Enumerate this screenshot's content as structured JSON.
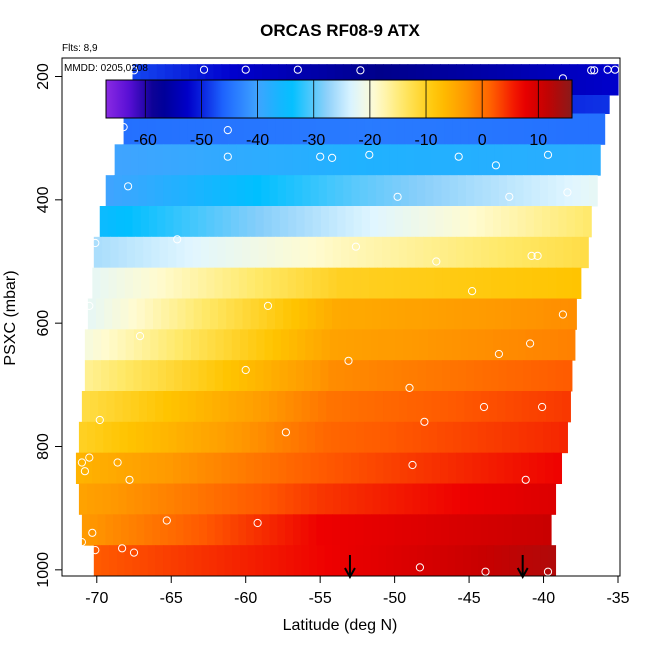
{
  "chart_data": {
    "type": "heatmap",
    "title": "ORCAS RF08-9 ATX",
    "subtitle": "Flts: 8,9",
    "annotation": "MMDD: 0205,0208",
    "xlabel": "Latitude (deg N)",
    "ylabel": "PSXC (mbar)",
    "xlim": [
      -72,
      -35
    ],
    "ylim": [
      1010,
      170
    ],
    "x_ticks": [
      -70,
      -65,
      -60,
      -55,
      -50,
      -45,
      -40,
      -35
    ],
    "y_ticks": [
      200,
      400,
      600,
      800,
      1000
    ],
    "colorbar": {
      "range": [
        -67,
        16
      ],
      "ticks": [
        -60,
        -50,
        -40,
        -30,
        -20,
        -10,
        0,
        10
      ],
      "stops": [
        {
          "v": -67,
          "c": "#8a2be2"
        },
        {
          "v": -63,
          "c": "#5a0fd6"
        },
        {
          "v": -58,
          "c": "#00008b"
        },
        {
          "v": -52,
          "c": "#0000cd"
        },
        {
          "v": -46,
          "c": "#1e66ff"
        },
        {
          "v": -40,
          "c": "#3fa4ff"
        },
        {
          "v": -34,
          "c": "#00bfff"
        },
        {
          "v": -28,
          "c": "#87cefa"
        },
        {
          "v": -23,
          "c": "#e0f6ff"
        },
        {
          "v": -19,
          "c": "#fffbd0"
        },
        {
          "v": -14,
          "c": "#ffe866"
        },
        {
          "v": -8,
          "c": "#ffc400"
        },
        {
          "v": -3,
          "c": "#ff9900"
        },
        {
          "v": 2,
          "c": "#ff5a00"
        },
        {
          "v": 7,
          "c": "#ee0000"
        },
        {
          "v": 11,
          "c": "#c80000"
        },
        {
          "v": 16,
          "c": "#8b1a1a"
        }
      ]
    },
    "layers": [
      {
        "p_top": 180,
        "p_bot": 230,
        "lat_start": -67.6,
        "lat_end": -35.0,
        "t_south": -48,
        "t_mid": -58,
        "t_north": -52
      },
      {
        "p_top": 230,
        "p_bot": 260,
        "lat_start": -67.8,
        "lat_end": -35.6,
        "t_south": -52,
        "t_mid": -52,
        "t_north": -49
      },
      {
        "p_top": 260,
        "p_bot": 310,
        "lat_start": -68.2,
        "lat_end": -35.9,
        "t_south": -45,
        "t_mid": -44,
        "t_north": -45
      },
      {
        "p_top": 310,
        "p_bot": 360,
        "lat_start": -68.8,
        "lat_end": -36.2,
        "t_south": -40,
        "t_mid": -37,
        "t_north": -38
      },
      {
        "p_top": 360,
        "p_bot": 410,
        "lat_start": -69.4,
        "lat_end": -36.4,
        "t_south": -40,
        "t_mid": -30,
        "t_north": -22
      },
      {
        "p_top": 410,
        "p_bot": 460,
        "lat_start": -69.8,
        "lat_end": -36.8,
        "t_south": -35,
        "t_mid": -24,
        "t_north": -14
      },
      {
        "p_top": 460,
        "p_bot": 510,
        "lat_start": -70.2,
        "lat_end": -37.0,
        "t_south": -26,
        "t_mid": -18,
        "t_north": -12
      },
      {
        "p_top": 510,
        "p_bot": 560,
        "lat_start": -70.3,
        "lat_end": -37.5,
        "t_south": -22,
        "t_mid": -10,
        "t_north": -8
      },
      {
        "p_top": 560,
        "p_bot": 610,
        "lat_start": -70.6,
        "lat_end": -37.8,
        "t_south": -22,
        "t_mid": -5,
        "t_north": -2
      },
      {
        "p_top": 610,
        "p_bot": 660,
        "lat_start": -70.8,
        "lat_end": -37.9,
        "t_south": -20,
        "t_mid": -4,
        "t_north": -1
      },
      {
        "p_top": 660,
        "p_bot": 710,
        "lat_start": -70.8,
        "lat_end": -38.1,
        "t_south": -16,
        "t_mid": -2,
        "t_north": 2
      },
      {
        "p_top": 710,
        "p_bot": 760,
        "lat_start": -71.0,
        "lat_end": -38.2,
        "t_south": -12,
        "t_mid": 0,
        "t_north": 4
      },
      {
        "p_top": 760,
        "p_bot": 810,
        "lat_start": -71.2,
        "lat_end": -38.4,
        "t_south": -10,
        "t_mid": 1,
        "t_north": 5
      },
      {
        "p_top": 810,
        "p_bot": 860,
        "lat_start": -71.4,
        "lat_end": -38.8,
        "t_south": -6,
        "t_mid": 2,
        "t_north": 7
      },
      {
        "p_top": 860,
        "p_bot": 910,
        "lat_start": -71.2,
        "lat_end": -39.2,
        "t_south": -4,
        "t_mid": 4,
        "t_north": 9
      },
      {
        "p_top": 910,
        "p_bot": 960,
        "lat_start": -71.0,
        "lat_end": -39.5,
        "t_south": -3,
        "t_mid": 7,
        "t_north": 11
      },
      {
        "p_top": 960,
        "p_bot": 1010,
        "lat_start": -70.2,
        "lat_end": -39.2,
        "t_south": 2,
        "t_mid": 7,
        "t_north": 13
      }
    ],
    "points": [
      {
        "x": -67.5,
        "y": 190
      },
      {
        "x": -62.8,
        "y": 189
      },
      {
        "x": -60.0,
        "y": 189
      },
      {
        "x": -56.5,
        "y": 189
      },
      {
        "x": -52.3,
        "y": 190
      },
      {
        "x": -38.7,
        "y": 203
      },
      {
        "x": -36.8,
        "y": 190
      },
      {
        "x": -36.6,
        "y": 190
      },
      {
        "x": -35.7,
        "y": 189
      },
      {
        "x": -35.2,
        "y": 189
      },
      {
        "x": -61.2,
        "y": 287
      },
      {
        "x": -68.2,
        "y": 282
      },
      {
        "x": -61.2,
        "y": 330
      },
      {
        "x": -55.0,
        "y": 330
      },
      {
        "x": -54.2,
        "y": 332
      },
      {
        "x": -51.7,
        "y": 327
      },
      {
        "x": -45.7,
        "y": 330
      },
      {
        "x": -43.2,
        "y": 344
      },
      {
        "x": -39.7,
        "y": 327
      },
      {
        "x": -67.9,
        "y": 378
      },
      {
        "x": -49.8,
        "y": 395
      },
      {
        "x": -42.3,
        "y": 395
      },
      {
        "x": -38.4,
        "y": 388
      },
      {
        "x": -64.6,
        "y": 464
      },
      {
        "x": -52.6,
        "y": 476
      },
      {
        "x": -70.1,
        "y": 470
      },
      {
        "x": -40.8,
        "y": 491
      },
      {
        "x": -40.4,
        "y": 491
      },
      {
        "x": -47.2,
        "y": 500
      },
      {
        "x": -70.5,
        "y": 572
      },
      {
        "x": -58.5,
        "y": 572
      },
      {
        "x": -44.8,
        "y": 548
      },
      {
        "x": -38.7,
        "y": 586
      },
      {
        "x": -67.1,
        "y": 621
      },
      {
        "x": -40.9,
        "y": 633
      },
      {
        "x": -43.0,
        "y": 650
      },
      {
        "x": -53.1,
        "y": 661
      },
      {
        "x": -60.0,
        "y": 676
      },
      {
        "x": -49.0,
        "y": 705
      },
      {
        "x": -44.0,
        "y": 736
      },
      {
        "x": -40.1,
        "y": 736
      },
      {
        "x": -69.8,
        "y": 757
      },
      {
        "x": -48.0,
        "y": 760
      },
      {
        "x": -57.3,
        "y": 777
      },
      {
        "x": -70.5,
        "y": 818
      },
      {
        "x": -71.0,
        "y": 826
      },
      {
        "x": -68.6,
        "y": 826
      },
      {
        "x": -48.8,
        "y": 830
      },
      {
        "x": -70.8,
        "y": 840
      },
      {
        "x": -67.8,
        "y": 854
      },
      {
        "x": -41.2,
        "y": 854
      },
      {
        "x": -65.3,
        "y": 920
      },
      {
        "x": -59.2,
        "y": 924
      },
      {
        "x": -70.3,
        "y": 940
      },
      {
        "x": -71.0,
        "y": 955
      },
      {
        "x": -70.1,
        "y": 968
      },
      {
        "x": -68.3,
        "y": 965
      },
      {
        "x": -67.5,
        "y": 972
      },
      {
        "x": -48.3,
        "y": 996
      },
      {
        "x": -43.9,
        "y": 1003
      },
      {
        "x": -39.7,
        "y": 1003
      }
    ],
    "arrows": [
      {
        "x": -53.0
      },
      {
        "x": -41.4
      }
    ],
    "background_color": "#ffffff",
    "frame_color": "#000000"
  }
}
